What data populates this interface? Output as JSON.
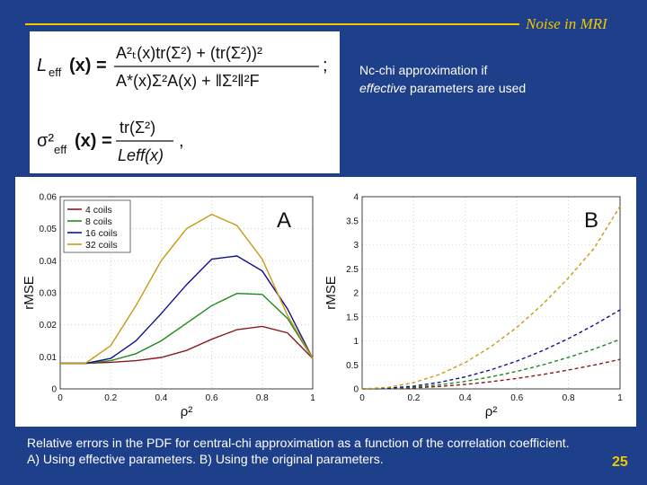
{
  "header": {
    "title": "Noise in MRI",
    "accent": "#f0c800"
  },
  "formulas": {
    "l_eff_lhs": "L",
    "l_eff_sub": "eff",
    "l_eff_var": "(x) =",
    "l_eff_num": "A²ₜ(x)tr(Σ²) + (tr(Σ²))²",
    "l_eff_den": "A*(x)Σ²A(x) + ‖Σ²‖²F",
    "l_eff_end": ";",
    "sigma_lhs": "σ²",
    "sigma_sub": "eff",
    "sigma_var": "(x) =",
    "sigma_num": "tr(Σ²)",
    "sigma_den": "Leff(x)",
    "sigma_end": ","
  },
  "note": {
    "line1": "Nc-chi approximation if",
    "emph": "effective",
    "line2_rest": " parameters are used"
  },
  "chart_data": [
    {
      "type": "line",
      "panel_label": "A",
      "xlabel": "ρ²",
      "ylabel": "rMSE",
      "xlim": [
        0,
        1
      ],
      "ylim": [
        0,
        0.06
      ],
      "x": [
        0,
        0.1,
        0.2,
        0.3,
        0.4,
        0.5,
        0.6,
        0.7,
        0.8,
        0.9,
        1.0
      ],
      "xticks": [
        "0",
        "0.2",
        "0.4",
        "0.6",
        "0.8",
        "1"
      ],
      "yticks": [
        "0",
        "0.01",
        "0.02",
        "0.03",
        "0.04",
        "0.05",
        "0.06"
      ],
      "legend": "top-left",
      "series": [
        {
          "name": "4 coils",
          "color": "#8b1a1a",
          "values": [
            0.008,
            0.008,
            0.0083,
            0.0088,
            0.0098,
            0.012,
            0.0155,
            0.0185,
            0.0195,
            0.0175,
            0.0095
          ]
        },
        {
          "name": "8 coils",
          "color": "#1e8a1e",
          "values": [
            0.008,
            0.008,
            0.0088,
            0.011,
            0.015,
            0.0205,
            0.026,
            0.0298,
            0.0295,
            0.022,
            0.0095
          ]
        },
        {
          "name": "16 coils",
          "color": "#101090",
          "values": [
            0.008,
            0.008,
            0.0095,
            0.015,
            0.0235,
            0.0325,
            0.0405,
            0.0415,
            0.0368,
            0.025,
            0.0095
          ]
        },
        {
          "name": "32 coils",
          "color": "#c89a10",
          "values": [
            0.008,
            0.008,
            0.0135,
            0.026,
            0.04,
            0.05,
            0.0545,
            0.051,
            0.0405,
            0.023,
            0.0095
          ]
        }
      ]
    },
    {
      "type": "line",
      "panel_label": "B",
      "xlabel": "ρ²",
      "ylabel": "rMSE",
      "xlim": [
        0,
        1
      ],
      "ylim": [
        0,
        4
      ],
      "x": [
        0,
        0.1,
        0.2,
        0.3,
        0.4,
        0.5,
        0.6,
        0.7,
        0.8,
        0.9,
        1.0
      ],
      "xticks": [
        "0",
        "0.2",
        "0.4",
        "0.6",
        "0.8",
        "1"
      ],
      "yticks": [
        "0",
        "0.5",
        "1",
        "1.5",
        "2",
        "2.5",
        "3",
        "3.5",
        "4"
      ],
      "style": "dashed",
      "series": [
        {
          "name": "4 coils",
          "color": "#8b1a1a",
          "values": [
            0,
            0.004,
            0.021,
            0.051,
            0.094,
            0.15,
            0.218,
            0.299,
            0.392,
            0.497,
            0.615
          ]
        },
        {
          "name": "8 coils",
          "color": "#1e8a1e",
          "values": [
            0,
            0.008,
            0.036,
            0.085,
            0.157,
            0.25,
            0.364,
            0.5,
            0.656,
            0.832,
            1.03
          ]
        },
        {
          "name": "16 coils",
          "color": "#101090",
          "values": [
            0,
            0.013,
            0.058,
            0.136,
            0.25,
            0.398,
            0.58,
            0.797,
            1.047,
            1.33,
            1.645
          ]
        },
        {
          "name": "32 coils",
          "color": "#c89a10",
          "values": [
            0,
            0.03,
            0.13,
            0.3,
            0.55,
            0.88,
            1.28,
            1.76,
            2.31,
            2.93,
            3.8
          ]
        }
      ]
    }
  ],
  "caption": "Relative errors in the PDF for central-chi approximation as a function of the correlation coefficient. A) Using effective parameters. B) Using the original parameters.",
  "page_number": "25"
}
